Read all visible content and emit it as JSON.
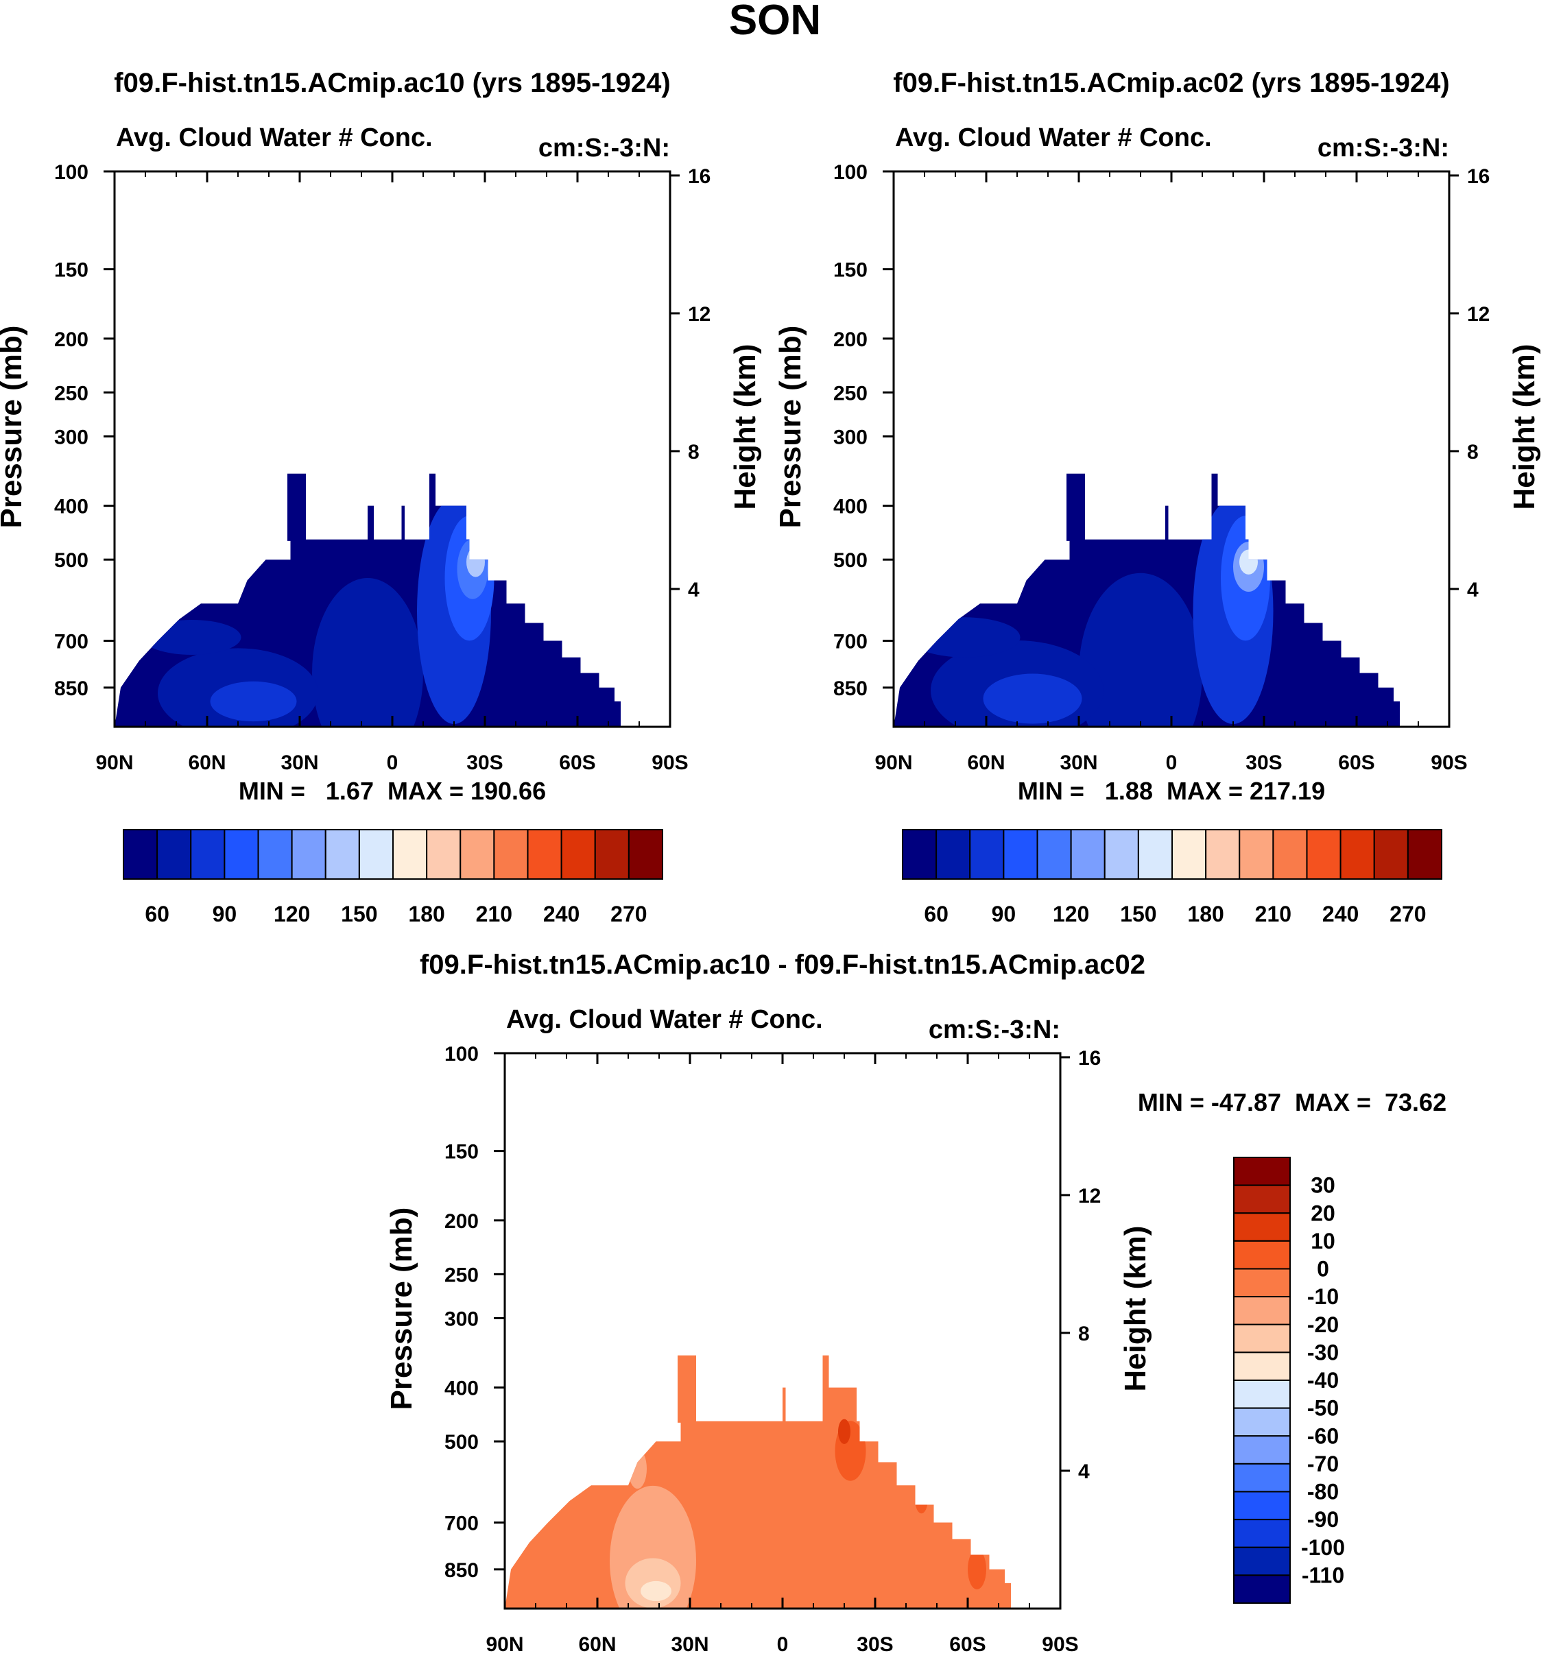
{
  "figure_title": "SON",
  "colors": {
    "seq_palette": [
      "#00007f",
      "#0019a8",
      "#0d35d6",
      "#1f55ff",
      "#4478ff",
      "#7a9efe",
      "#b0c8fd",
      "#d9e9fd",
      "#feeedb",
      "#fdcbb1",
      "#fca67f",
      "#f97b4a",
      "#f4521f",
      "#de3508",
      "#b01d05",
      "#7f0000"
    ],
    "diff_palette": [
      "#00007f",
      "#0023b0",
      "#0f3ce0",
      "#1f55ff",
      "#4478ff",
      "#7a9efe",
      "#a9c4fd",
      "#d9e9fd",
      "#fee7d1",
      "#fdc8a8",
      "#fca67f",
      "#fa7a45",
      "#f55a22",
      "#e03a0a",
      "#b8230a",
      "#860000"
    ]
  },
  "chart_data": [
    {
      "type": "heatmap",
      "name": "panel-ac10",
      "title": "f09.F-hist.tn15.ACmip.ac10 (yrs 1895-1924)",
      "subtitle_left": "Avg. Cloud Water # Conc.",
      "subtitle_right": "cm:S:-3:N:",
      "xlabel": "",
      "ylabel": "Pressure (mb)",
      "ylabel_right": "Height (km)",
      "xlim": [
        90,
        -90
      ],
      "ylim": [
        100,
        1000
      ],
      "yscale": "log",
      "x_ticks": [
        90,
        60,
        30,
        0,
        -30,
        -60,
        -90
      ],
      "x_tick_labels": [
        "90N",
        "60N",
        "30N",
        "0",
        "30S",
        "60S",
        "90S"
      ],
      "y_ticks": [
        100,
        150,
        200,
        250,
        300,
        400,
        500,
        700,
        850
      ],
      "y_tick_labels": [
        "100",
        "150",
        "200",
        "250",
        "300",
        "400",
        "500",
        "700",
        "850"
      ],
      "right_ticks_km": [
        16,
        12,
        8,
        4
      ],
      "right_tick_labels": [
        "16",
        "12",
        "8",
        "4"
      ],
      "stats_text": "MIN =   1.67  MAX = 190.66",
      "colorbar": {
        "orientation": "horizontal",
        "levels": [
          60,
          90,
          120,
          150,
          180,
          210,
          240,
          270
        ],
        "labels": [
          "60",
          "90",
          "120",
          "150",
          "180",
          "210",
          "240",
          "270"
        ]
      },
      "domain_top_mb": [
        [
          90,
          1000
        ],
        [
          88,
          850
        ],
        [
          82,
          760
        ],
        [
          76,
          700
        ],
        [
          69,
          640
        ],
        [
          62,
          600
        ],
        [
          50,
          600
        ],
        [
          47,
          545
        ],
        [
          41,
          500
        ],
        [
          33,
          500
        ],
        [
          33,
          460
        ],
        [
          29,
          460
        ],
        [
          27,
          460
        ],
        [
          27,
          460
        ],
        [
          -25,
          460
        ],
        [
          -25,
          500
        ],
        [
          -31,
          500
        ],
        [
          -31,
          545
        ],
        [
          -37,
          545
        ],
        [
          -37,
          600
        ],
        [
          -43,
          600
        ],
        [
          -43,
          650
        ],
        [
          -49,
          650
        ],
        [
          -49,
          700
        ],
        [
          -55,
          700
        ],
        [
          -55,
          750
        ],
        [
          -61,
          750
        ],
        [
          -61,
          800
        ],
        [
          -67,
          800
        ],
        [
          -67,
          850
        ],
        [
          -72,
          850
        ],
        [
          -72,
          900
        ],
        [
          -74,
          900
        ],
        [
          -74,
          1000
        ]
      ],
      "spikes": [
        [
          [
            34,
            350
          ],
          [
            28,
            350
          ]
        ],
        [
          [
            8,
            400
          ],
          [
            6,
            400
          ]
        ],
        [
          [
            -3,
            400
          ],
          [
            -4,
            400
          ]
        ],
        [
          [
            -12,
            350
          ],
          [
            -14,
            350
          ]
        ],
        [
          [
            -14,
            400
          ],
          [
            -24,
            400
          ]
        ]
      ],
      "features": [
        {
          "level": 1,
          "lat": 8,
          "p": 800,
          "rx": 18,
          "rp": 0.38
        },
        {
          "level": 2,
          "lat": -20,
          "p": 620,
          "rx": 12,
          "rp": 0.45
        },
        {
          "level": 3,
          "lat": -25,
          "p": 540,
          "rx": 8,
          "rp": 0.25
        },
        {
          "level": 4,
          "lat": -26,
          "p": 520,
          "rx": 5,
          "rp": 0.12
        },
        {
          "level": 6,
          "lat": -27,
          "p": 505,
          "rx": 3,
          "rp": 0.06
        },
        {
          "level": 1,
          "lat": 50,
          "p": 870,
          "rx": 26,
          "rp": 0.18
        },
        {
          "level": 2,
          "lat": 45,
          "p": 900,
          "rx": 14,
          "rp": 0.08
        },
        {
          "level": 1,
          "lat": 65,
          "p": 690,
          "rx": 16,
          "rp": 0.07
        }
      ]
    },
    {
      "type": "heatmap",
      "name": "panel-ac02",
      "title": "f09.F-hist.tn15.ACmip.ac02 (yrs 1895-1924)",
      "subtitle_left": "Avg. Cloud Water # Conc.",
      "subtitle_right": "cm:S:-3:N:",
      "xlabel": "",
      "ylabel": "Pressure (mb)",
      "ylabel_right": "Height (km)",
      "xlim": [
        90,
        -90
      ],
      "ylim": [
        100,
        1000
      ],
      "yscale": "log",
      "x_ticks": [
        90,
        60,
        30,
        0,
        -30,
        -60,
        -90
      ],
      "x_tick_labels": [
        "90N",
        "60N",
        "30N",
        "0",
        "30S",
        "60S",
        "90S"
      ],
      "y_ticks": [
        100,
        150,
        200,
        250,
        300,
        400,
        500,
        700,
        850
      ],
      "y_tick_labels": [
        "100",
        "150",
        "200",
        "250",
        "300",
        "400",
        "500",
        "700",
        "850"
      ],
      "right_ticks_km": [
        16,
        12,
        8,
        4
      ],
      "right_tick_labels": [
        "16",
        "12",
        "8",
        "4"
      ],
      "stats_text": "MIN =   1.88  MAX = 217.19",
      "colorbar": {
        "orientation": "horizontal",
        "levels": [
          60,
          90,
          120,
          150,
          180,
          210,
          240,
          270
        ],
        "labels": [
          "60",
          "90",
          "120",
          "150",
          "180",
          "210",
          "240",
          "270"
        ]
      },
      "domain_top_mb": [
        [
          90,
          1000
        ],
        [
          88,
          850
        ],
        [
          82,
          760
        ],
        [
          76,
          700
        ],
        [
          69,
          640
        ],
        [
          62,
          600
        ],
        [
          50,
          600
        ],
        [
          47,
          545
        ],
        [
          41,
          500
        ],
        [
          33,
          500
        ],
        [
          33,
          460
        ],
        [
          29,
          460
        ],
        [
          27,
          460
        ],
        [
          27,
          460
        ],
        [
          -25,
          460
        ],
        [
          -25,
          500
        ],
        [
          -31,
          500
        ],
        [
          -31,
          545
        ],
        [
          -37,
          545
        ],
        [
          -37,
          600
        ],
        [
          -43,
          600
        ],
        [
          -43,
          650
        ],
        [
          -49,
          650
        ],
        [
          -49,
          700
        ],
        [
          -55,
          700
        ],
        [
          -55,
          750
        ],
        [
          -61,
          750
        ],
        [
          -61,
          800
        ],
        [
          -67,
          800
        ],
        [
          -67,
          850
        ],
        [
          -72,
          850
        ],
        [
          -72,
          900
        ],
        [
          -74,
          900
        ],
        [
          -74,
          1000
        ]
      ],
      "spikes": [
        [
          [
            34,
            350
          ],
          [
            28,
            350
          ]
        ],
        [
          [
            2,
            400
          ],
          [
            1,
            400
          ]
        ],
        [
          [
            -13,
            350
          ],
          [
            -15,
            350
          ]
        ],
        [
          [
            -15,
            400
          ],
          [
            -24,
            400
          ]
        ]
      ],
      "features": [
        {
          "level": 1,
          "lat": 10,
          "p": 800,
          "rx": 20,
          "rp": 0.4
        },
        {
          "level": 2,
          "lat": -20,
          "p": 620,
          "rx": 13,
          "rp": 0.45
        },
        {
          "level": 3,
          "lat": -24,
          "p": 540,
          "rx": 8,
          "rp": 0.25
        },
        {
          "level": 5,
          "lat": -25,
          "p": 515,
          "rx": 5,
          "rp": 0.1
        },
        {
          "level": 7,
          "lat": -25,
          "p": 505,
          "rx": 3,
          "rp": 0.05
        },
        {
          "level": 1,
          "lat": 50,
          "p": 860,
          "rx": 28,
          "rp": 0.2
        },
        {
          "level": 2,
          "lat": 45,
          "p": 890,
          "rx": 16,
          "rp": 0.1
        },
        {
          "level": 1,
          "lat": 67,
          "p": 690,
          "rx": 18,
          "rp": 0.08
        },
        {
          "level": 8,
          "lat": -30,
          "p": 480,
          "rx": 1,
          "rp": 0.02
        }
      ]
    },
    {
      "type": "heatmap",
      "name": "panel-diff",
      "title": "f09.F-hist.tn15.ACmip.ac10 - f09.F-hist.tn15.ACmip.ac02",
      "subtitle_left": "Avg. Cloud Water # Conc.",
      "subtitle_right": "cm:S:-3:N:",
      "xlabel": "",
      "ylabel": "Pressure (mb)",
      "ylabel_right": "Height (km)",
      "xlim": [
        90,
        -90
      ],
      "ylim": [
        100,
        1000
      ],
      "yscale": "log",
      "x_ticks": [
        90,
        60,
        30,
        0,
        -30,
        -60,
        -90
      ],
      "x_tick_labels": [
        "90N",
        "60N",
        "30N",
        "0",
        "30S",
        "60S",
        "90S"
      ],
      "y_ticks": [
        100,
        150,
        200,
        250,
        300,
        400,
        500,
        700,
        850
      ],
      "y_tick_labels": [
        "100",
        "150",
        "200",
        "250",
        "300",
        "400",
        "500",
        "700",
        "850"
      ],
      "right_ticks_km": [
        16,
        12,
        8,
        4
      ],
      "right_tick_labels": [
        "16",
        "12",
        "8",
        "4"
      ],
      "stats_text": "MIN = -47.87  MAX =  73.62",
      "colorbar": {
        "orientation": "vertical",
        "levels": [
          30,
          20,
          10,
          0,
          -10,
          -20,
          -30,
          -40,
          -50,
          -60,
          -70,
          -80,
          -90,
          -100,
          -110
        ],
        "labels": [
          "30",
          "20",
          "10",
          "0",
          "-10",
          "-20",
          "-30",
          "-40",
          "-50",
          "-60",
          "-70",
          "-80",
          "-90",
          "-100",
          "-110"
        ]
      },
      "domain_top_mb": [
        [
          90,
          1000
        ],
        [
          88,
          850
        ],
        [
          82,
          760
        ],
        [
          76,
          700
        ],
        [
          69,
          640
        ],
        [
          62,
          600
        ],
        [
          50,
          600
        ],
        [
          47,
          545
        ],
        [
          41,
          500
        ],
        [
          33,
          500
        ],
        [
          33,
          460
        ],
        [
          29,
          460
        ],
        [
          27,
          460
        ],
        [
          27,
          460
        ],
        [
          -25,
          460
        ],
        [
          -25,
          500
        ],
        [
          -31,
          500
        ],
        [
          -31,
          545
        ],
        [
          -37,
          545
        ],
        [
          -37,
          600
        ],
        [
          -43,
          600
        ],
        [
          -43,
          650
        ],
        [
          -49,
          650
        ],
        [
          -49,
          700
        ],
        [
          -55,
          700
        ],
        [
          -55,
          750
        ],
        [
          -61,
          750
        ],
        [
          -61,
          800
        ],
        [
          -67,
          800
        ],
        [
          -67,
          850
        ],
        [
          -72,
          850
        ],
        [
          -72,
          900
        ],
        [
          -74,
          900
        ],
        [
          -74,
          1000
        ]
      ],
      "spikes": [
        [
          [
            34,
            350
          ],
          [
            28,
            350
          ]
        ],
        [
          [
            0,
            400
          ],
          [
            -1,
            400
          ]
        ],
        [
          [
            -13,
            350
          ],
          [
            -15,
            350
          ]
        ],
        [
          [
            -15,
            400
          ],
          [
            -24,
            400
          ]
        ]
      ],
      "features": [
        {
          "level": 10,
          "lat": 42,
          "p": 820,
          "rx": 14,
          "rp": 0.3
        },
        {
          "level": 9,
          "lat": 42,
          "p": 900,
          "rx": 9,
          "rp": 0.1
        },
        {
          "level": 8,
          "lat": 41,
          "p": 930,
          "rx": 5,
          "rp": 0.04
        },
        {
          "level": 10,
          "lat": 47,
          "p": 560,
          "rx": 3,
          "rp": 0.08
        },
        {
          "level": 12,
          "lat": -22,
          "p": 520,
          "rx": 5,
          "rp": 0.12
        },
        {
          "level": 13,
          "lat": -20,
          "p": 480,
          "rx": 2,
          "rp": 0.05
        },
        {
          "level": 12,
          "lat": -63,
          "p": 850,
          "rx": 3,
          "rp": 0.08
        },
        {
          "level": 12,
          "lat": -45,
          "p": 640,
          "rx": 2,
          "rp": 0.05
        }
      ]
    }
  ]
}
